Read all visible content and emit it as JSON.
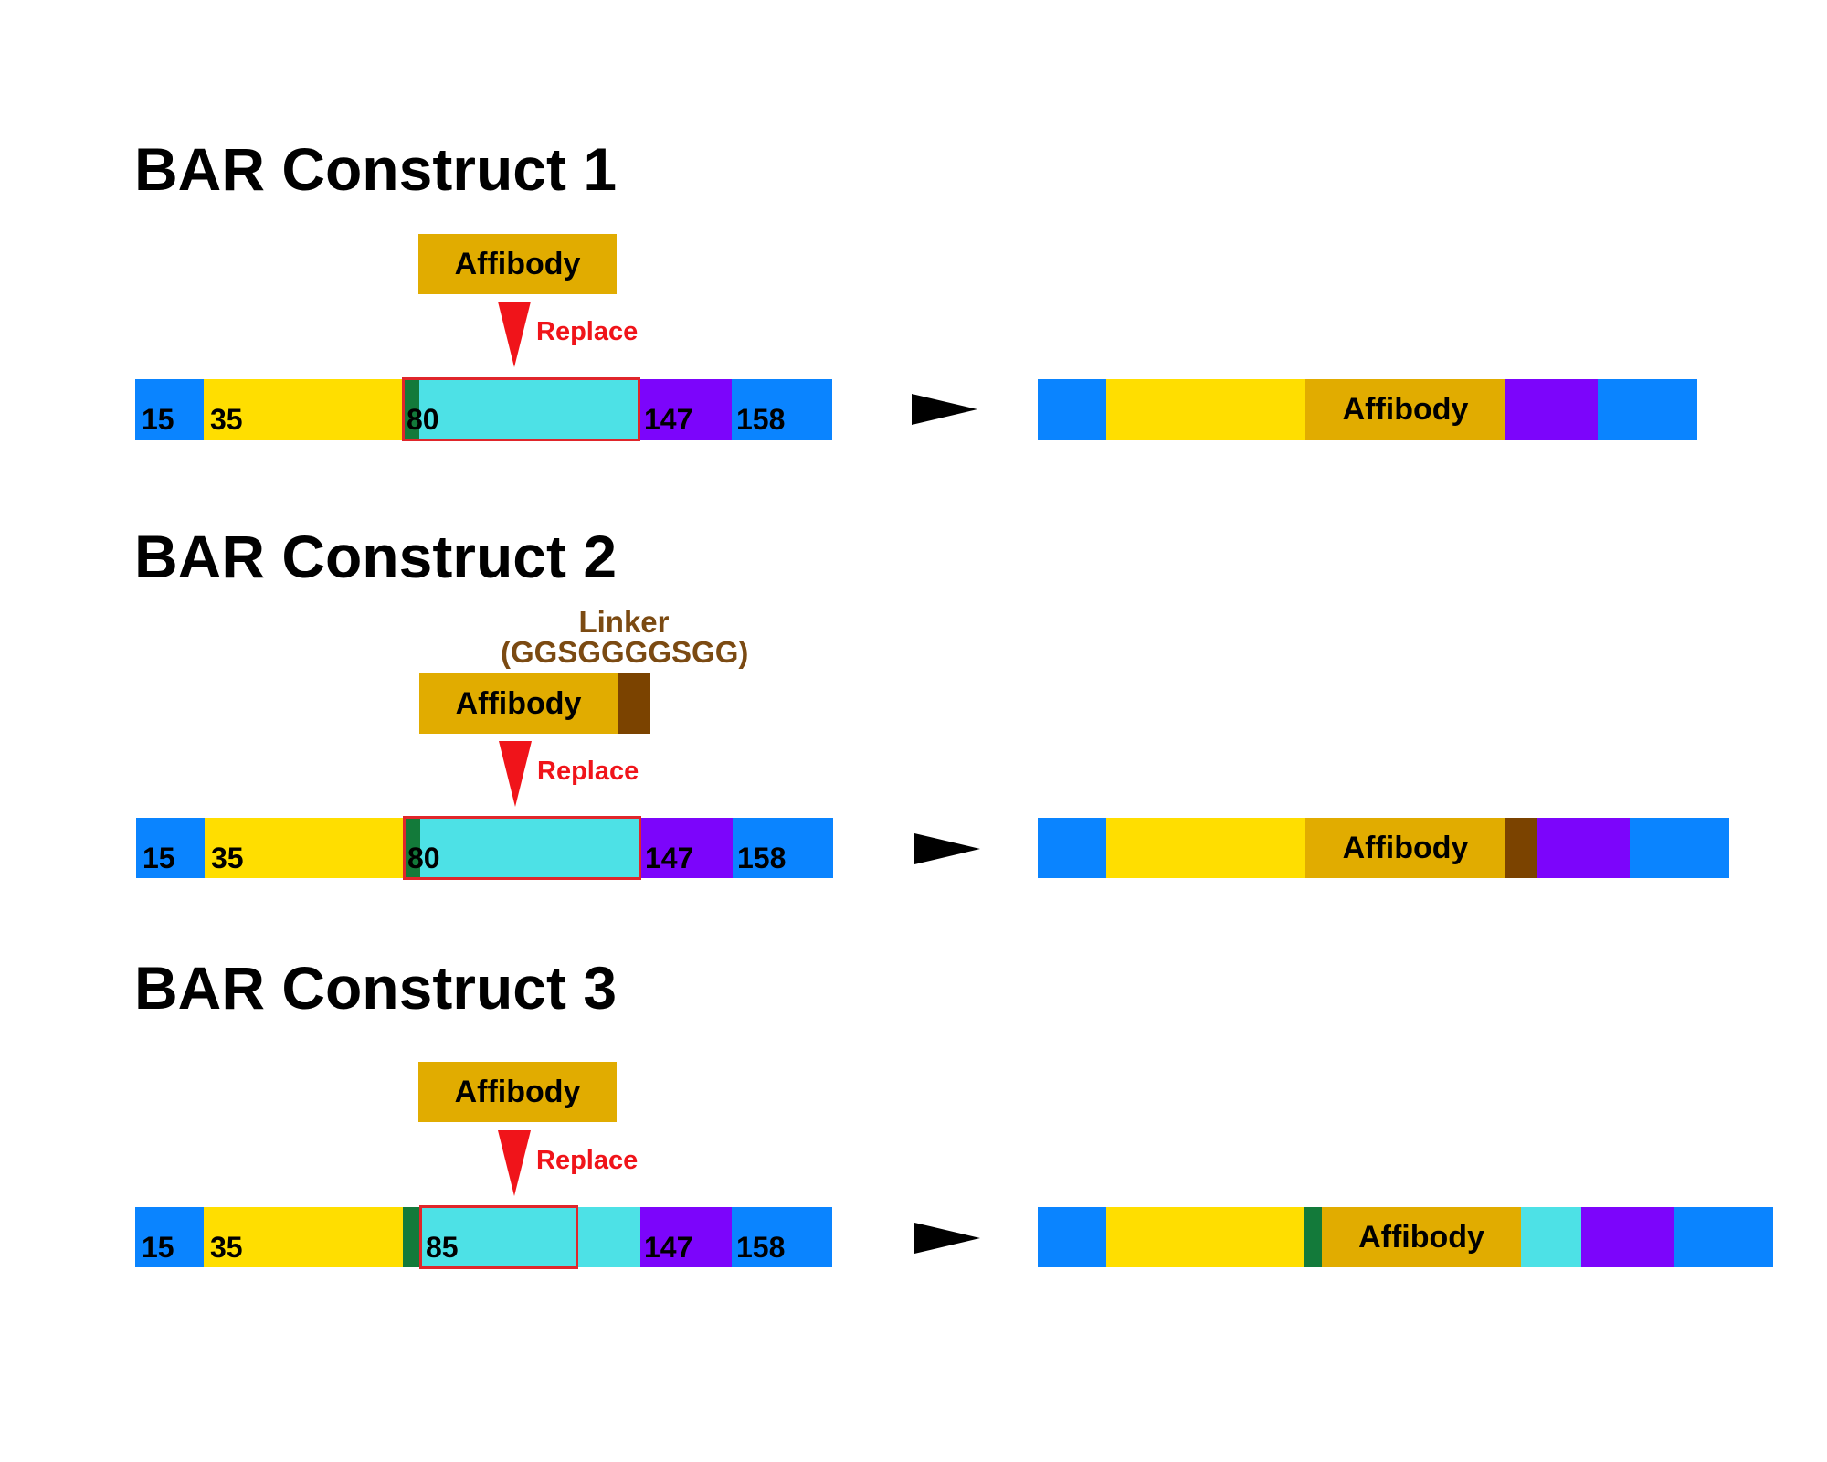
{
  "colors": {
    "blue": "#0a84ff",
    "yellow": "#ffde00",
    "green": "#137a3a",
    "cyan": "#4de1e6",
    "purple": "#7c05fb",
    "gold": "#e1ac00",
    "brown": "#7b4300",
    "red": "#f0141a",
    "linker_text": "#7b4a12"
  },
  "constructs": [
    {
      "title": "BAR Construct 1",
      "insert_label": "Affibody",
      "replace_label": "Replace",
      "positions": [
        "15",
        "35",
        "80",
        "147",
        "158"
      ],
      "result_label": "Affibody"
    },
    {
      "title": "BAR Construct 2",
      "linker_title": "Linker",
      "linker_sequence": "(GGSGGGGSGG)",
      "insert_label": "Affibody",
      "replace_label": "Replace",
      "positions": [
        "15",
        "35",
        "80",
        "147",
        "158"
      ],
      "result_label": "Affibody"
    },
    {
      "title": "BAR Construct 3",
      "insert_label": "Affibody",
      "replace_label": "Replace",
      "positions": [
        "15",
        "35",
        "85",
        "147",
        "158"
      ],
      "result_label": "Affibody"
    }
  ]
}
